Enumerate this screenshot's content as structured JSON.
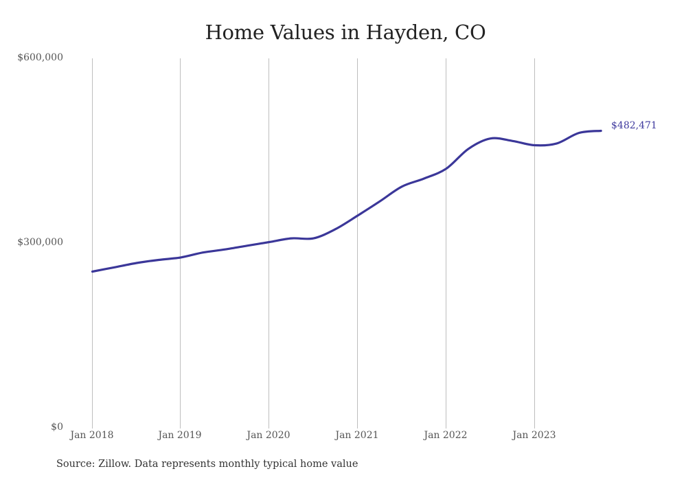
{
  "chart_data": {
    "type": "line",
    "title": "Home Values in Hayden, CO",
    "xlabel": "",
    "ylabel": "",
    "ylim": [
      0,
      600000
    ],
    "y_ticks": [
      "$0",
      "$300,000",
      "$600,000"
    ],
    "y_tick_values": [
      0,
      300000,
      600000
    ],
    "x_ticks": [
      "Jan 2018",
      "Jan 2019",
      "Jan 2020",
      "Jan 2021",
      "Jan 2022",
      "Jan 2023"
    ],
    "grid": "vertical",
    "legend": "none",
    "line_color": "#3b3799",
    "end_label": "$482,471",
    "series": [
      {
        "name": "Typical home value",
        "x": [
          "2018-01",
          "2018-04",
          "2018-07",
          "2018-10",
          "2019-01",
          "2019-04",
          "2019-07",
          "2019-10",
          "2020-01",
          "2020-04",
          "2020-07",
          "2020-10",
          "2021-01",
          "2021-04",
          "2021-07",
          "2021-10",
          "2022-01",
          "2022-04",
          "2022-07",
          "2022-10",
          "2023-01",
          "2023-04",
          "2023-07",
          "2023-10"
        ],
        "values": [
          254000,
          261000,
          268000,
          273000,
          277000,
          285000,
          290000,
          296000,
          302000,
          308000,
          308000,
          323000,
          345000,
          368000,
          392000,
          405000,
          421000,
          453000,
          470000,
          466000,
          459000,
          462000,
          479000,
          482471
        ]
      }
    ],
    "source_note": "Source: Zillow. Data represents monthly typical home value"
  },
  "labels": {
    "title": "Home Values in Hayden, CO",
    "y_top": "$600,000",
    "y_mid": "$300,000",
    "y_bottom": "$0",
    "x0": "Jan 2018",
    "x1": "Jan 2019",
    "x2": "Jan 2020",
    "x3": "Jan 2021",
    "x4": "Jan 2022",
    "x5": "Jan 2023",
    "end_value": "$482,471",
    "source": "Source: Zillow. Data represents monthly typical home value"
  }
}
